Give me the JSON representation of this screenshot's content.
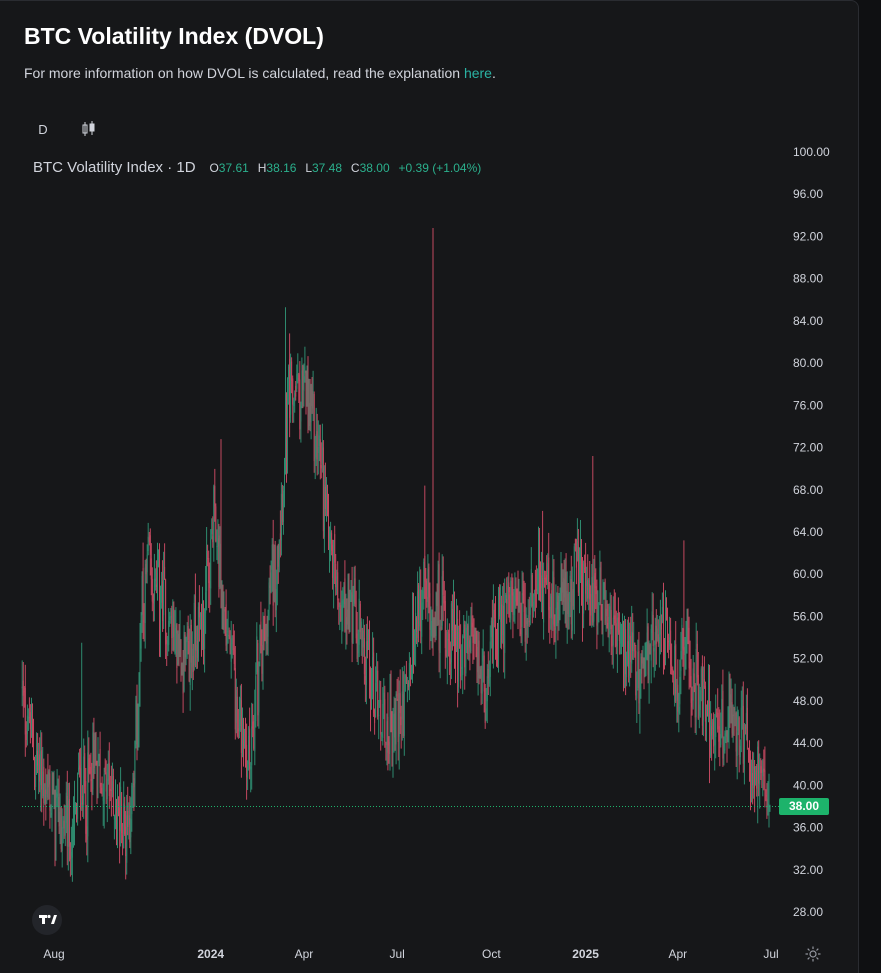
{
  "header": {
    "title": "BTC Volatility Index (DVOL)",
    "subtitle_text": "For more information on how DVOL is calculated, read the explanation ",
    "subtitle_link": "here",
    "subtitle_end": "."
  },
  "toolbar": {
    "interval": "D",
    "chart_type_icon": "candlestick-icon"
  },
  "legend": {
    "name": "BTC Volatility Index · 1D",
    "o_label": "O",
    "o_value": "37.61",
    "h_label": "H",
    "h_value": "38.16",
    "l_label": "L",
    "l_value": "37.48",
    "c_label": "C",
    "c_value": "38.00",
    "change": "+0.39 (+1.04%)"
  },
  "colors": {
    "up": "#26a69a",
    "down": "#ef5350",
    "up_dim": "#2e8a6e",
    "down_dim": "#c2485f",
    "background": "#161719",
    "axis_text": "#d1d4dc",
    "last_price": "#1db36b"
  },
  "chart_data": {
    "type": "candlestick",
    "title": "BTC Volatility Index (DVOL)",
    "ylim": [
      26,
      102
    ],
    "y_ticks": [
      "100.00",
      "96.00",
      "92.00",
      "88.00",
      "84.00",
      "80.00",
      "76.00",
      "72.00",
      "68.00",
      "64.00",
      "60.00",
      "56.00",
      "52.00",
      "48.00",
      "44.00",
      "40.00",
      "36.00",
      "32.00",
      "28.00"
    ],
    "x_tick_labels": [
      "Aug",
      "2024",
      "Apr",
      "Jul",
      "Oct",
      "2025",
      "Apr",
      "Jul"
    ],
    "x_tick_dates": [
      "2023-08-01",
      "2024-01-01",
      "2024-04-01",
      "2024-07-01",
      "2024-10-01",
      "2025-01-01",
      "2025-04-01",
      "2025-07-01"
    ],
    "last_price": "38.00",
    "last_price_value": 38.0,
    "range_start": "2023-07-01",
    "range_end": "2025-06-30",
    "close_anchors": [
      [
        "2023-07-01",
        49
      ],
      [
        "2023-07-08",
        45
      ],
      [
        "2023-07-15",
        42
      ],
      [
        "2023-07-22",
        40
      ],
      [
        "2023-08-01",
        38
      ],
      [
        "2023-08-10",
        36
      ],
      [
        "2023-08-18",
        34
      ],
      [
        "2023-08-25",
        40
      ],
      [
        "2023-09-02",
        39
      ],
      [
        "2023-09-10",
        42
      ],
      [
        "2023-09-20",
        40
      ],
      [
        "2023-10-01",
        38
      ],
      [
        "2023-10-10",
        36
      ],
      [
        "2023-10-18",
        40
      ],
      [
        "2023-10-25",
        55
      ],
      [
        "2023-11-01",
        60
      ],
      [
        "2023-11-10",
        58
      ],
      [
        "2023-11-20",
        56
      ],
      [
        "2023-12-01",
        53
      ],
      [
        "2023-12-10",
        52
      ],
      [
        "2023-12-20",
        55
      ],
      [
        "2023-12-28",
        58
      ],
      [
        "2024-01-05",
        65
      ],
      [
        "2024-01-12",
        58
      ],
      [
        "2024-01-20",
        52
      ],
      [
        "2024-01-28",
        47
      ],
      [
        "2024-02-03",
        44
      ],
      [
        "2024-02-08",
        42
      ],
      [
        "2024-02-15",
        50
      ],
      [
        "2024-02-25",
        56
      ],
      [
        "2024-03-05",
        62
      ],
      [
        "2024-03-12",
        70
      ],
      [
        "2024-03-17",
        76
      ],
      [
        "2024-03-25",
        78
      ],
      [
        "2024-04-05",
        76
      ],
      [
        "2024-04-15",
        72
      ],
      [
        "2024-04-25",
        65
      ],
      [
        "2024-05-05",
        58
      ],
      [
        "2024-05-15",
        57
      ],
      [
        "2024-05-25",
        54
      ],
      [
        "2024-06-05",
        50
      ],
      [
        "2024-06-15",
        47
      ],
      [
        "2024-06-25",
        45
      ],
      [
        "2024-07-03",
        47
      ],
      [
        "2024-07-10",
        48
      ],
      [
        "2024-07-18",
        54
      ],
      [
        "2024-07-25",
        58
      ],
      [
        "2024-08-05",
        57
      ],
      [
        "2024-08-15",
        56
      ],
      [
        "2024-08-25",
        54
      ],
      [
        "2024-09-05",
        53
      ],
      [
        "2024-09-15",
        52
      ],
      [
        "2024-09-25",
        50
      ],
      [
        "2024-10-05",
        54
      ],
      [
        "2024-10-15",
        57
      ],
      [
        "2024-10-25",
        56
      ],
      [
        "2024-11-05",
        55
      ],
      [
        "2024-11-12",
        60
      ],
      [
        "2024-11-20",
        59
      ],
      [
        "2024-12-01",
        56
      ],
      [
        "2024-12-10",
        58
      ],
      [
        "2024-12-20",
        59
      ],
      [
        "2024-12-28",
        60
      ],
      [
        "2025-01-05",
        57
      ],
      [
        "2025-01-15",
        58
      ],
      [
        "2025-01-25",
        56
      ],
      [
        "2025-02-05",
        53
      ],
      [
        "2025-02-15",
        51
      ],
      [
        "2025-02-25",
        49
      ],
      [
        "2025-03-05",
        54
      ],
      [
        "2025-03-15",
        56
      ],
      [
        "2025-03-25",
        52
      ],
      [
        "2025-04-01",
        49
      ],
      [
        "2025-04-08",
        55
      ],
      [
        "2025-04-15",
        50
      ],
      [
        "2025-04-25",
        48
      ],
      [
        "2025-05-05",
        46
      ],
      [
        "2025-05-15",
        45
      ],
      [
        "2025-05-25",
        46
      ],
      [
        "2025-06-05",
        44
      ],
      [
        "2025-06-15",
        41
      ],
      [
        "2025-06-22",
        39
      ],
      [
        "2025-06-30",
        38
      ]
    ],
    "spikes": [
      {
        "date": "2023-08-18",
        "low": 31.5
      },
      {
        "date": "2023-08-28",
        "high": 53.5
      },
      {
        "date": "2023-10-04",
        "low": 32.6
      },
      {
        "date": "2023-11-02",
        "high": 64
      },
      {
        "date": "2024-01-11",
        "high": 72.8
      },
      {
        "date": "2024-02-07",
        "low": 41.4
      },
      {
        "date": "2024-03-14",
        "high": 85.3
      },
      {
        "date": "2024-07-03",
        "low": 41.5
      },
      {
        "date": "2024-08-05",
        "high": 92.8
      },
      {
        "date": "2024-07-28",
        "high": 68.4
      },
      {
        "date": "2024-11-20",
        "high": 66
      },
      {
        "date": "2025-01-08",
        "high": 71.2
      },
      {
        "date": "2025-04-07",
        "high": 63.2
      },
      {
        "date": "2025-06-18",
        "low": 36.4
      }
    ]
  },
  "footer": {
    "logo_icon": "tradingview-logo-icon",
    "settings_icon": "gear-icon"
  }
}
